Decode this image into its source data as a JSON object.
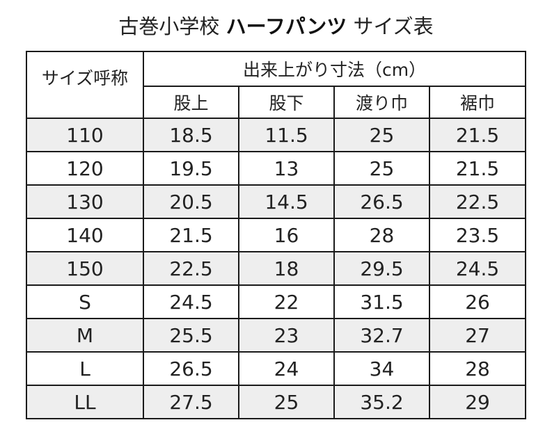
{
  "title": {
    "prefix": "古巻小学校 ",
    "bold": "ハーフパンツ",
    "suffix": " サイズ表"
  },
  "table": {
    "size_header": "サイズ呼称",
    "group_header": "出来上がり寸法（cm）",
    "columns": [
      "股上",
      "股下",
      "渡り巾",
      "裾巾"
    ],
    "rows": [
      {
        "size": "110",
        "values": [
          "18.5",
          "11.5",
          "25",
          "21.5"
        ]
      },
      {
        "size": "120",
        "values": [
          "19.5",
          "13",
          "25",
          "21.5"
        ]
      },
      {
        "size": "130",
        "values": [
          "20.5",
          "14.5",
          "26.5",
          "22.5"
        ]
      },
      {
        "size": "140",
        "values": [
          "21.5",
          "16",
          "28",
          "23.5"
        ]
      },
      {
        "size": "150",
        "values": [
          "22.5",
          "18",
          "29.5",
          "24.5"
        ]
      },
      {
        "size": "S",
        "values": [
          "24.5",
          "22",
          "31.5",
          "26"
        ]
      },
      {
        "size": "M",
        "values": [
          "25.5",
          "23",
          "32.7",
          "27"
        ]
      },
      {
        "size": "L",
        "values": [
          "26.5",
          "24",
          "34",
          "28"
        ]
      },
      {
        "size": "LL",
        "values": [
          "27.5",
          "25",
          "35.2",
          "29"
        ]
      }
    ]
  },
  "colors": {
    "border": "#1a1a1a",
    "shaded_row": "#eeeeee",
    "text": "#222222"
  }
}
